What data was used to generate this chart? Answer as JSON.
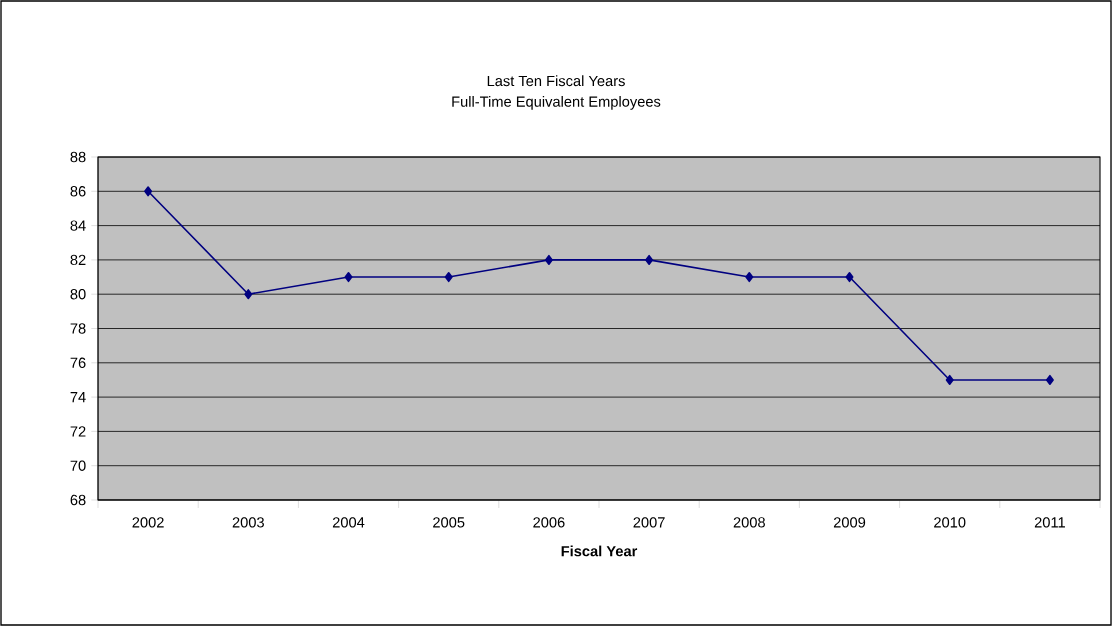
{
  "chart_data": {
    "type": "line",
    "title": "Last Ten Fiscal Years",
    "subtitle": "Full-Time Equivalent Employees",
    "xlabel": "Fiscal Year",
    "categories": [
      "2002",
      "2003",
      "2004",
      "2005",
      "2006",
      "2007",
      "2008",
      "2009",
      "2010",
      "2011"
    ],
    "series": [
      {
        "color": "#000080",
        "values": [
          86,
          80,
          81,
          81,
          82,
          82,
          81,
          81,
          75,
          75
        ]
      }
    ],
    "ylim": [
      68,
      88
    ],
    "yticks": [
      68,
      70,
      72,
      74,
      76,
      78,
      80,
      82,
      84,
      86,
      88
    ],
    "grid": "y",
    "marker": "diamond",
    "line_style": "solid"
  }
}
